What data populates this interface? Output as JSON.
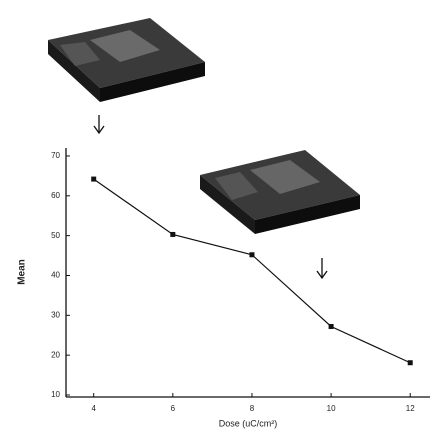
{
  "chart_data": {
    "type": "line",
    "x_label": "Dose (uC/cm²)",
    "y_label": "Mean",
    "x": [
      4,
      6,
      8,
      10,
      12
    ],
    "series": [
      {
        "name": "Mean",
        "color": "#111111",
        "values": [
          64.2,
          50.3,
          45.2,
          27.2,
          18.1
        ]
      }
    ],
    "xlim": [
      3.3,
      12.5
    ],
    "ylim": [
      9.5,
      72
    ],
    "xticks": [
      4,
      6,
      8,
      10,
      12
    ],
    "yticks": [
      10,
      20,
      30,
      40,
      50,
      60,
      70
    ],
    "grid": false
  }
}
